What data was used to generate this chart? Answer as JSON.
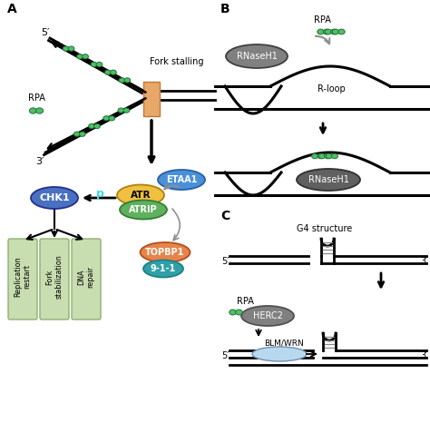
{
  "bg_color": "#ffffff",
  "label_A": "A",
  "label_B": "B",
  "label_C": "C",
  "fork_stalling_text": "Fork stalling",
  "rpa_text": "RPA",
  "five_prime": "5′",
  "three_prime": "3′",
  "etaa1_color": "#4a90d9",
  "atr_color": "#f0c040",
  "atrip_color": "#60b060",
  "topbp1_color": "#e8834a",
  "chk1_color": "#4a70c0",
  "nine11_color": "#30a0a8",
  "rnaseh1_color": "#808080",
  "rnaseh1_dark": "#505050",
  "herc2_color": "#808080",
  "green_color": "#50c060",
  "green_edge": "#207040",
  "orange_block_color": "#e8a868",
  "orange_block_edge": "#c07838",
  "light_green_box": "#c8ddb0",
  "light_green_edge": "#90b070",
  "p_color": "#40d8e8",
  "rloop_text": "R-loop",
  "g4_text": "G4 structure",
  "blmwrn_text": "BLM/WRN",
  "blue_oval_color": "#b8d8f0",
  "blue_oval_edge": "#7090b0",
  "gray_arrow": "#909090",
  "line_color": "#000000",
  "white": "#ffffff",
  "black": "#000000"
}
